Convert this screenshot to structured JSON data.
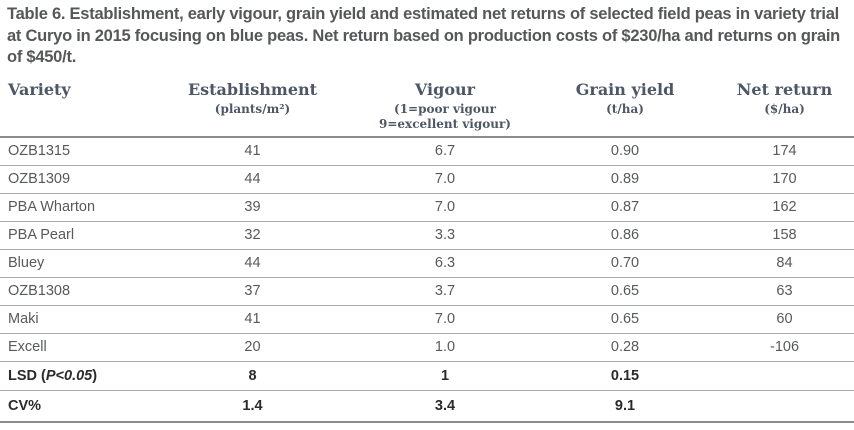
{
  "title": "Table 6. Establishment, early vigour, grain yield and estimated net returns of selected field peas in variety trial at Curyo in 2015 focusing on blue peas. Net return based on production costs of $230/ha and returns on grain of $450/t.",
  "table": {
    "columns": [
      {
        "key": "variety",
        "label": "Variety",
        "sub": ""
      },
      {
        "key": "establishment",
        "label": "Establishment",
        "sub": "(plants/m²)"
      },
      {
        "key": "vigour",
        "label": "Vigour",
        "sub": "(1=poor vigour\n9=excellent vigour)"
      },
      {
        "key": "grain-yield",
        "label": "Grain yield",
        "sub": "(t/ha)"
      },
      {
        "key": "net-return",
        "label": "Net return",
        "sub": "($/ha)"
      }
    ],
    "rows": [
      {
        "cells": [
          "OZB1315",
          "41",
          "6.7",
          "0.90",
          "174"
        ],
        "bold": false
      },
      {
        "cells": [
          "OZB1309",
          "44",
          "7.0",
          "0.89",
          "170"
        ],
        "bold": false
      },
      {
        "cells": [
          "PBA Wharton",
          "39",
          "7.0",
          "0.87",
          "162"
        ],
        "bold": false
      },
      {
        "cells": [
          "PBA Pearl",
          "32",
          "3.3",
          "0.86",
          "158"
        ],
        "bold": false
      },
      {
        "cells": [
          "Bluey",
          "44",
          "6.3",
          "0.70",
          "84"
        ],
        "bold": false
      },
      {
        "cells": [
          "OZB1308",
          "37",
          "3.7",
          "0.65",
          "63"
        ],
        "bold": false
      },
      {
        "cells": [
          "Maki",
          "41",
          "7.0",
          "0.65",
          "60"
        ],
        "bold": false
      },
      {
        "cells": [
          "Excell",
          "20",
          "1.0",
          "0.28",
          "-106"
        ],
        "bold": false
      },
      {
        "cells": [
          "LSD (P<0.05)",
          "8",
          "1",
          "0.15",
          ""
        ],
        "bold": true,
        "label_parts": [
          {
            "t": "LSD ("
          },
          {
            "t": "P<0.05",
            "i": true
          },
          {
            "t": ")"
          }
        ]
      },
      {
        "cells": [
          "CV%",
          "1.4",
          "3.4",
          "9.1",
          ""
        ],
        "bold": true
      }
    ]
  },
  "colors": {
    "title_text": "#565759",
    "header_text": "#4d5765",
    "body_text": "#58595b",
    "bold_row_text": "#2b2b2d",
    "row_separator": "#a9abad",
    "strong_rule": "#8a8b8e",
    "background": "#ffffff"
  }
}
